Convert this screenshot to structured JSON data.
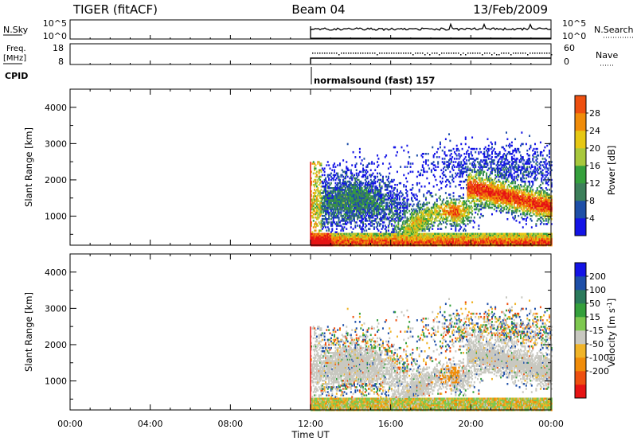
{
  "header": {
    "station": "TIGER (fitACF)",
    "beam": "Beam 04",
    "date": "13/Feb/2009"
  },
  "top_panels": {
    "nsky_label": "N.Sky",
    "nsky_ticks": [
      "10^5",
      "10^0"
    ],
    "nsearch_label": "N.Search",
    "nsearch_ticks": [
      "10^5",
      "10^0"
    ],
    "freq_label_1": "Freq.",
    "freq_label_2": "[MHz]",
    "freq_ticks": [
      "18",
      "8"
    ],
    "nave_label": "Nave",
    "nave_ticks": [
      "60",
      "0"
    ],
    "cpid_label": "CPID",
    "cpid_value": "normalsound (fast) 157"
  },
  "colors": {
    "power_scale": [
      "#1414e6",
      "#1e4fa8",
      "#3c7f5a",
      "#35a03c",
      "#a8c83c",
      "#e6c814",
      "#f08c0a",
      "#ee5010",
      "#e61414"
    ],
    "velocity_scale": [
      "#1414e6",
      "#1e4fa8",
      "#2b7a5c",
      "#35a03c",
      "#7ec850",
      "#c8c8c0",
      "#f0b428",
      "#f08c0a",
      "#ee5010",
      "#e61414"
    ]
  },
  "chart_data": [
    {
      "type": "heatmap",
      "panel": "power",
      "ylabel": "Slant Range [km]",
      "yticks": [
        "1000",
        "2000",
        "3000",
        "4000"
      ],
      "ylim": [
        200,
        4500
      ],
      "xlim": [
        "00:00",
        "24:00"
      ],
      "data_start_time": "12:00",
      "colorbar_label": "Power [dB]",
      "colorbar_ticks": [
        "4",
        "8",
        "12",
        "16",
        "20",
        "24",
        "28"
      ],
      "colorbar_range": [
        0,
        32
      ]
    },
    {
      "type": "heatmap",
      "panel": "velocity",
      "ylabel": "Slant Range [km]",
      "yticks": [
        "1000",
        "2000",
        "3000",
        "4000"
      ],
      "ylim": [
        200,
        4500
      ],
      "xlim": [
        "00:00",
        "24:00"
      ],
      "data_start_time": "12:00",
      "xlabel": "Time UT",
      "xticks": [
        "00:00",
        "04:00",
        "08:00",
        "12:00",
        "16:00",
        "20:00",
        "00:00"
      ],
      "colorbar_label": "Velocity [m s^-1]",
      "colorbar_ticks": [
        "200",
        "100",
        "50",
        "15",
        "-15",
        "-50",
        "-100",
        "-200"
      ]
    }
  ]
}
